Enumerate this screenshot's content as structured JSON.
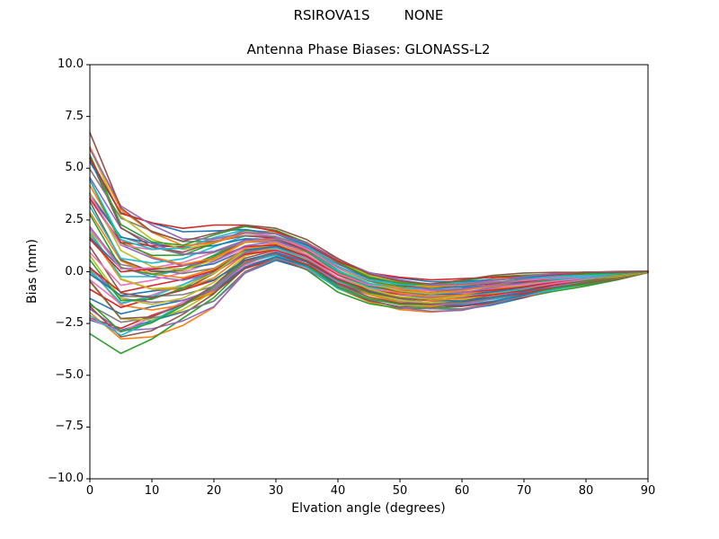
{
  "chart_data": {
    "type": "line",
    "title": "RSIROVA1S        NONE",
    "axes_title": "Antenna Phase Biases: GLONASS-L2",
    "xlabel": "Elvation angle (degrees)",
    "ylabel": "Bias (mm)",
    "xlim": [
      0,
      90
    ],
    "ylim": [
      -10.0,
      10.0
    ],
    "xticks": [
      0,
      10,
      20,
      30,
      40,
      50,
      60,
      70,
      80,
      90
    ],
    "xtick_labels": [
      "0",
      "10",
      "20",
      "30",
      "40",
      "50",
      "60",
      "70",
      "80",
      "90"
    ],
    "yticks": [
      10.0,
      7.5,
      5.0,
      2.5,
      0.0,
      -2.5,
      -5.0,
      -7.5,
      -10.0
    ],
    "ytick_labels": [
      "10.0",
      "7.5",
      "5.0",
      "2.5",
      "0.0",
      "−2.5",
      "−5.0",
      "−7.5",
      "−10.0"
    ],
    "grid": false,
    "legend": false,
    "n_series": 56,
    "x": [
      0,
      5,
      10,
      15,
      20,
      25,
      30,
      35,
      40,
      45,
      50,
      55,
      60,
      65,
      70,
      75,
      80,
      85,
      90
    ],
    "envelope_top": [
      6.2,
      3.1,
      2.25,
      1.8,
      2.0,
      2.2,
      2.0,
      1.45,
      0.6,
      -0.05,
      -0.35,
      -0.5,
      -0.4,
      -0.25,
      -0.15,
      -0.07,
      -0.02,
      0.0,
      0.02
    ],
    "envelope_bottom": [
      -2.7,
      -3.5,
      -3.0,
      -2.3,
      -1.5,
      0.0,
      0.6,
      0.1,
      -0.9,
      -1.45,
      -1.75,
      -1.85,
      -1.8,
      -1.55,
      -1.25,
      -0.9,
      -0.65,
      -0.38,
      -0.04
    ],
    "palette": [
      "#1f77b4",
      "#ff7f0e",
      "#2ca02c",
      "#d62728",
      "#9467bd",
      "#8c564b",
      "#e377c2",
      "#7f7f7f",
      "#bcbd22",
      "#17becf"
    ],
    "axis_color": "#000000",
    "background_color": "#ffffff"
  }
}
